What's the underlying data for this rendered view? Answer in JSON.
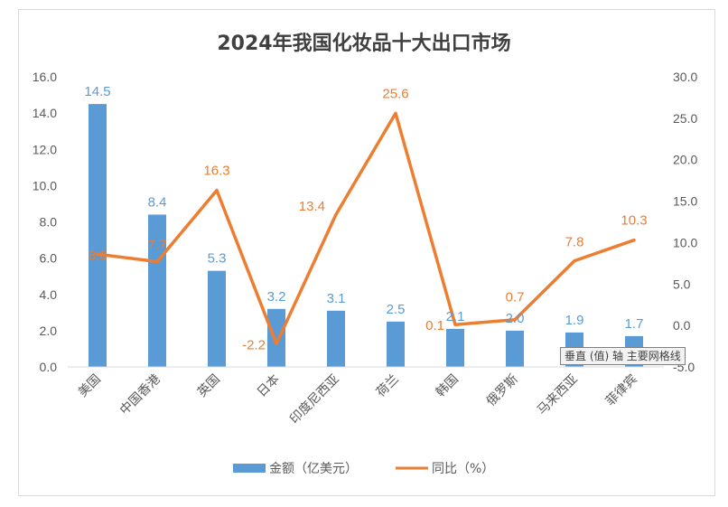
{
  "chart_data": {
    "type": "bar+line",
    "title": "2024年我国化妆品十大出口市场",
    "categories": [
      "美国",
      "中国香港",
      "英国",
      "日本",
      "印度尼西亚",
      "荷兰",
      "韩国",
      "俄罗斯",
      "马来西亚",
      "菲律宾"
    ],
    "series": [
      {
        "name": "金额（亿美元）",
        "type": "bar",
        "axis": "left",
        "color": "#5b9bd5",
        "values": [
          14.5,
          8.4,
          5.3,
          3.2,
          3.1,
          2.5,
          2.1,
          2.0,
          1.9,
          1.7
        ],
        "labels": [
          "14.5",
          "8.4",
          "5.3",
          "3.2",
          "3.1",
          "2.5",
          "2.1",
          "2.0",
          "1.9",
          "1.7"
        ]
      },
      {
        "name": "同比（%）",
        "type": "line",
        "axis": "right",
        "color": "#ed7d31",
        "values": [
          8.6,
          7.7,
          16.3,
          -2.2,
          13.4,
          25.6,
          0.1,
          0.7,
          7.8,
          10.3
        ],
        "labels": [
          "8.6",
          "7.7",
          "16.3",
          "-2.2",
          "13.4",
          "25.6",
          "0.1",
          "0.7",
          "7.8",
          "10.3"
        ]
      }
    ],
    "y_left": {
      "min": 0,
      "max": 16,
      "step": 2,
      "ticks": [
        "0.0",
        "2.0",
        "4.0",
        "6.0",
        "8.0",
        "10.0",
        "12.0",
        "14.0",
        "16.0"
      ]
    },
    "y_right": {
      "min": -5,
      "max": 30,
      "step": 5,
      "ticks": [
        "-5.0",
        "0.0",
        "5.0",
        "10.0",
        "15.0",
        "20.0",
        "25.0",
        "30.0"
      ]
    },
    "grid": false,
    "legend_position": "bottom"
  },
  "tooltip": "垂直 (值) 轴 主要网格线"
}
